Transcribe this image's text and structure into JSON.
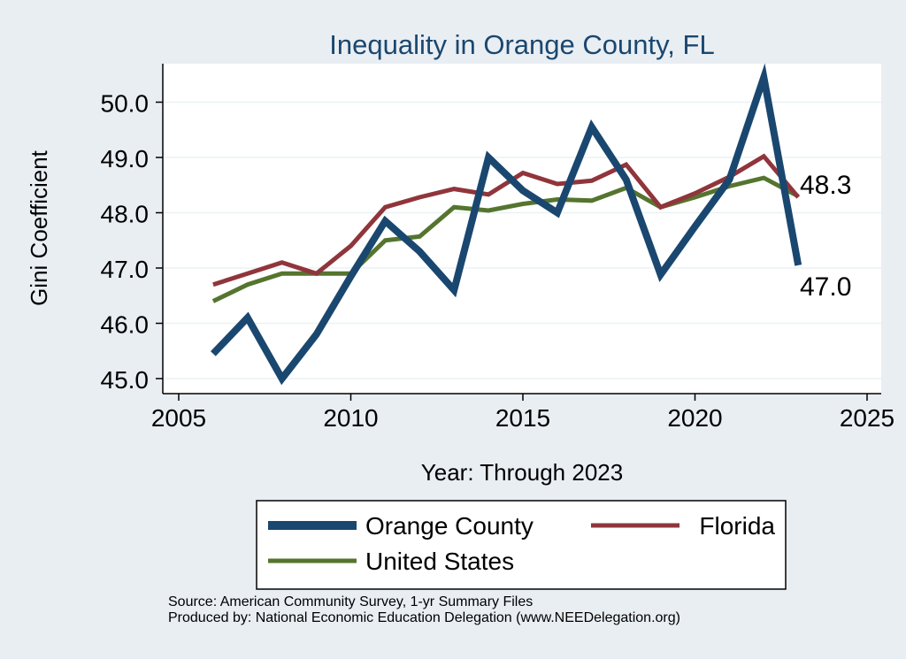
{
  "chart_data": {
    "type": "line",
    "title": "Inequality in Orange County, FL",
    "xlabel": "Year: Through 2023",
    "ylabel": "Gini Coefficient",
    "xlim": [
      2005,
      2025
    ],
    "ylim": [
      45.0,
      50.5
    ],
    "xticks": [
      "2005",
      "2010",
      "2015",
      "2020",
      "2025"
    ],
    "yticks": [
      "45.0",
      "46.0",
      "47.0",
      "48.0",
      "49.0",
      "50.0"
    ],
    "x": [
      2006,
      2007,
      2008,
      2009,
      2010,
      2011,
      2012,
      2013,
      2014,
      2015,
      2016,
      2017,
      2018,
      2019,
      2020,
      2021,
      2022,
      2023
    ],
    "series": [
      {
        "name": "Orange County",
        "color": "#1a476f",
        "values": [
          45.45,
          46.1,
          45.0,
          45.8,
          46.85,
          47.85,
          47.3,
          46.6,
          49.0,
          48.4,
          48.0,
          49.55,
          48.6,
          46.88,
          47.75,
          48.6,
          50.45,
          47.05
        ]
      },
      {
        "name": "Florida",
        "color": "#90353b",
        "values": [
          46.7,
          46.9,
          47.1,
          46.9,
          47.4,
          48.1,
          48.28,
          48.43,
          48.33,
          48.72,
          48.52,
          48.58,
          48.87,
          48.1,
          48.35,
          48.65,
          49.02,
          48.28
        ]
      },
      {
        "name": "United States",
        "color": "#55752f",
        "values": [
          46.4,
          46.7,
          46.9,
          46.9,
          46.9,
          47.5,
          47.57,
          48.1,
          48.04,
          48.16,
          48.24,
          48.22,
          48.45,
          48.1,
          48.28,
          48.48,
          48.63,
          48.3
        ]
      }
    ],
    "annotations": [
      {
        "text": "48.3",
        "series": "Florida",
        "x": 2023,
        "y": 48.28
      },
      {
        "text": "47.0",
        "series": "Orange County",
        "x": 2023,
        "y": 47.05
      }
    ],
    "legend": {
      "placement": "bottom",
      "entries": [
        "Orange County",
        "Florida",
        "United States"
      ]
    },
    "grid": true
  },
  "notes": {
    "source": "Source: American Community Survey, 1-yr Summary Files",
    "producer": "Produced by: National Economic Education Delegation (www.NEEDelegation.org)"
  },
  "colors": {
    "background": "#e9eef3",
    "plot_background": "#ffffff",
    "grid": "#eaf2f3",
    "title": "#1a476f"
  }
}
